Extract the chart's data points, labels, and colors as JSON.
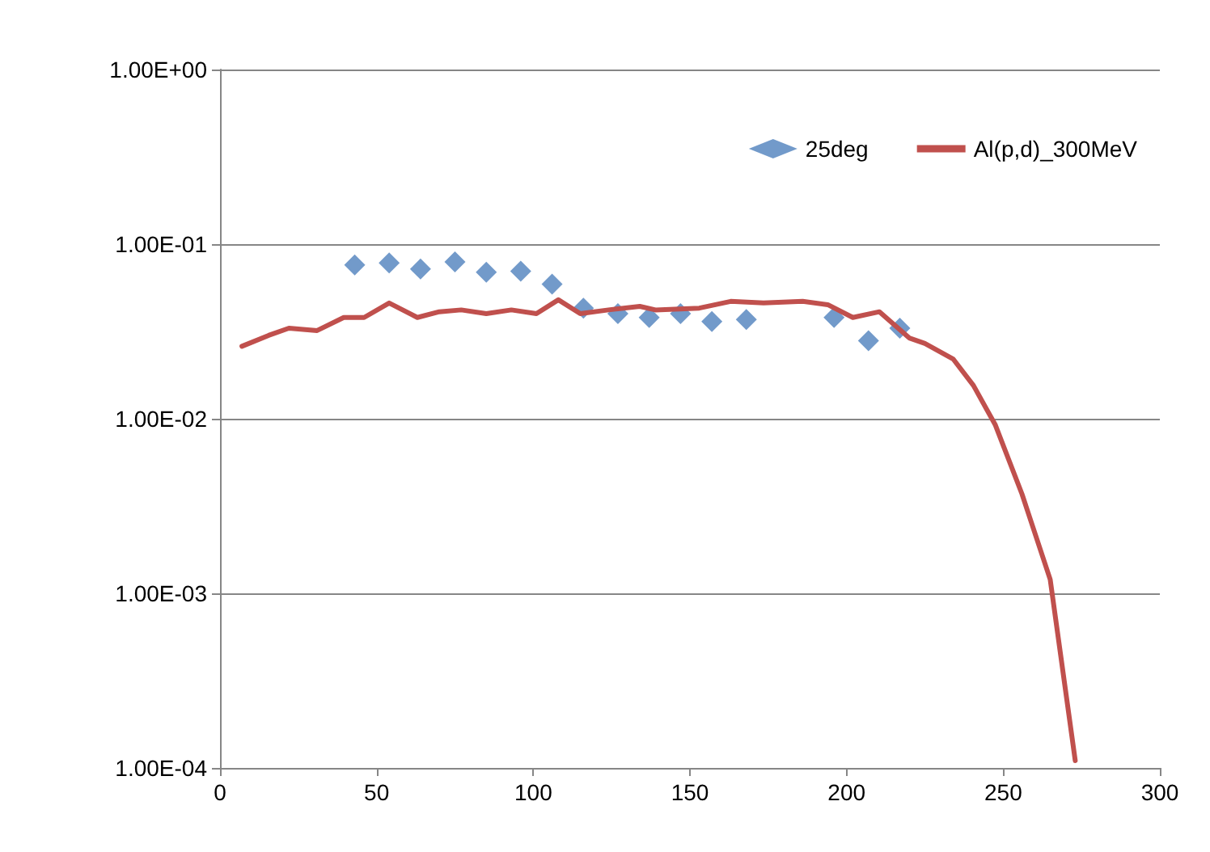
{
  "chart_data": {
    "type": "scatter",
    "log": "y",
    "grid": "y",
    "legend": "top right",
    "xlim": [
      0,
      300
    ],
    "xticks": [
      0,
      50,
      100,
      150,
      200,
      250,
      300
    ],
    "ylim": [
      0.0001,
      1
    ],
    "yticks": [
      {
        "value": 0.0001,
        "label": "1.00E-04"
      },
      {
        "value": 0.001,
        "label": "1.00E-03"
      },
      {
        "value": 0.01,
        "label": "1.00E-02"
      },
      {
        "value": 0.1,
        "label": "1.00E-01"
      },
      {
        "value": 1,
        "label": "1.00E+00"
      }
    ],
    "series": [
      {
        "name": "25deg",
        "marker": "diamond",
        "color": "#4f81bd",
        "x": [
          43,
          54,
          64,
          75,
          85,
          96,
          106,
          116,
          127,
          137,
          147,
          157,
          168,
          196,
          207,
          217
        ],
        "values": [
          0.076,
          0.078,
          0.072,
          0.079,
          0.069,
          0.07,
          0.059,
          0.043,
          0.04,
          0.038,
          0.04,
          0.036,
          0.037,
          0.038,
          0.028,
          0.033
        ]
      },
      {
        "name": "Al(p,d)_300MeV",
        "type": "line",
        "marker": "none",
        "line_style": "solid",
        "color": "#c0504d",
        "x": [
          7,
          15.5,
          22,
          31,
          39.5,
          46,
          54,
          63,
          70,
          77,
          85,
          93,
          101,
          108,
          115,
          124,
          134,
          139,
          153,
          163,
          173.5,
          186,
          194,
          202,
          210.5,
          220,
          225,
          234,
          240.5,
          247.5,
          256,
          265,
          273
        ],
        "values": [
          0.026,
          0.03,
          0.033,
          0.032,
          0.038,
          0.038,
          0.046,
          0.038,
          0.041,
          0.042,
          0.04,
          0.042,
          0.04,
          0.048,
          0.04,
          0.042,
          0.044,
          0.042,
          0.043,
          0.047,
          0.046,
          0.047,
          0.045,
          0.038,
          0.041,
          0.029,
          0.027,
          0.022,
          0.0155,
          0.0092,
          0.0037,
          0.0012,
          0.00011
        ]
      }
    ]
  }
}
